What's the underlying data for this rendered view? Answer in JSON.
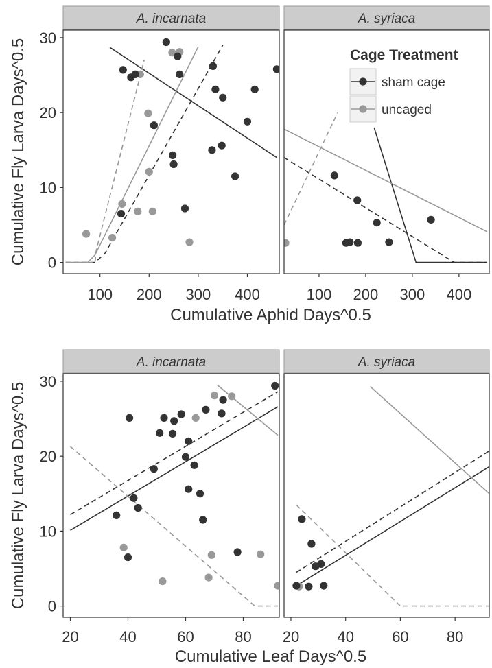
{
  "chart_data": [
    {
      "type": "scatter",
      "panel_group": "top",
      "xlabel": "Cumulative Aphid Days^0.5",
      "ylabel": "Cumulative Fly Larva Days^0.5",
      "xlim": [
        25,
        465
      ],
      "ylim": [
        -1.5,
        31
      ],
      "xticks": [
        100,
        200,
        300,
        400
      ],
      "yticks": [
        0,
        10,
        20,
        30
      ],
      "legend": {
        "title": "Cage Treatment",
        "placement": "top-right",
        "entries": [
          {
            "label": "sham cage",
            "color": "#333333"
          },
          {
            "label": "uncaged",
            "color": "#999999"
          }
        ]
      },
      "panels": [
        {
          "strip": "A. incarnata",
          "sham": [
            [
              143,
              6.5
            ],
            [
              147,
              25.7
            ],
            [
              163,
              24.7
            ],
            [
              172,
              25.1
            ],
            [
              210,
              18.3
            ],
            [
              235,
              29.4
            ],
            [
              248,
              14.3
            ],
            [
              250,
              13.1
            ],
            [
              258,
              27.5
            ],
            [
              262,
              25.1
            ],
            [
              273,
              7.2
            ],
            [
              328,
              15.0
            ],
            [
              330,
              26.2
            ],
            [
              335,
              23.1
            ],
            [
              348,
              15.6
            ],
            [
              350,
              22.0
            ],
            [
              375,
              11.5
            ],
            [
              400,
              18.8
            ],
            [
              415,
              23.1
            ],
            [
              460,
              25.8
            ]
          ],
          "uncaged": [
            [
              72,
              3.8
            ],
            [
              125,
              3.3
            ],
            [
              145,
              7.8
            ],
            [
              177,
              6.8
            ],
            [
              182,
              25.1
            ],
            [
              198,
              19.9
            ],
            [
              200,
              12.1
            ],
            [
              207,
              6.8
            ],
            [
              247,
              28.0
            ],
            [
              262,
              28.1
            ],
            [
              282,
              2.7
            ]
          ],
          "fits": [
            {
              "color": "#333333",
              "dash": false,
              "points": [
                [
                  120,
                  28.7
                ],
                [
                  460,
                  14.0
                ]
              ]
            },
            {
              "color": "#333333",
              "dash": true,
              "points": [
                [
                  30,
                  0
                ],
                [
                  90,
                  0
                ],
                [
                  110,
                  1.2
                ],
                [
                  350,
                  29.0
                ]
              ]
            },
            {
              "color": "#999999",
              "dash": false,
              "points": [
                [
                  30,
                  0
                ],
                [
                  75,
                  0
                ],
                [
                  90,
                  1.0
                ],
                [
                  300,
                  28.8
                ]
              ]
            },
            {
              "color": "#999999",
              "dash": true,
              "points": [
                [
                  75,
                  0
                ],
                [
                  90,
                  0
                ],
                [
                  92,
                  1.5
                ],
                [
                  190,
                  27.0
                ]
              ]
            }
          ]
        },
        {
          "strip": "A. syriaca",
          "sham": [
            [
              133,
              11.6
            ],
            [
              158,
              2.6
            ],
            [
              166,
              2.7
            ],
            [
              182,
              8.3
            ],
            [
              183,
              2.6
            ],
            [
              224,
              5.3
            ],
            [
              250,
              2.7
            ],
            [
              340,
              5.7
            ]
          ],
          "uncaged": [
            [
              28,
              2.6
            ]
          ],
          "fits": [
            {
              "color": "#333333",
              "dash": false,
              "points": [
                [
                  218,
                  18.0
                ],
                [
                  308,
                  0
                ],
                [
                  460,
                  0
                ]
              ]
            },
            {
              "color": "#333333",
              "dash": true,
              "points": [
                [
                  25,
                  14.0
                ],
                [
                  390,
                  0
                ],
                [
                  460,
                  0
                ]
              ]
            },
            {
              "color": "#999999",
              "dash": false,
              "points": [
                [
                  25,
                  17.8
                ],
                [
                  460,
                  4.1
                ]
              ]
            },
            {
              "color": "#999999",
              "dash": true,
              "points": [
                [
                  25,
                  5.0
                ],
                [
                  140,
                  20.0
                ]
              ]
            }
          ]
        }
      ]
    },
    {
      "type": "scatter",
      "panel_group": "bottom",
      "xlabel": "Cumulative Leaf Days^0.5",
      "ylabel": "Cumulative Fly Larva Days^0.5",
      "xlim": [
        17.5,
        92.5
      ],
      "ylim": [
        -1.5,
        31
      ],
      "xticks": [
        20,
        40,
        60,
        80
      ],
      "yticks": [
        0,
        10,
        20,
        30
      ],
      "panels": [
        {
          "strip": "A. incarnata",
          "sham": [
            [
              36,
              12.1
            ],
            [
              40,
              6.5
            ],
            [
              40.5,
              25.1
            ],
            [
              42,
              14.4
            ],
            [
              43.5,
              13.1
            ],
            [
              49,
              18.3
            ],
            [
              51,
              23.1
            ],
            [
              52.5,
              25.1
            ],
            [
              55.5,
              23.0
            ],
            [
              56,
              24.7
            ],
            [
              58.5,
              25.6
            ],
            [
              60,
              19.9
            ],
            [
              61,
              22.0
            ],
            [
              61,
              15.6
            ],
            [
              63,
              18.8
            ],
            [
              65,
              15.0
            ],
            [
              66,
              11.5
            ],
            [
              67,
              26.2
            ],
            [
              72.5,
              25.7
            ],
            [
              73,
              27.5
            ],
            [
              78,
              7.2
            ],
            [
              91,
              29.4
            ]
          ],
          "uncaged": [
            [
              38.5,
              7.8
            ],
            [
              52,
              3.3
            ],
            [
              63.5,
              25.1
            ],
            [
              68,
              3.8
            ],
            [
              69,
              6.8
            ],
            [
              70,
              28.1
            ],
            [
              76,
              28.0
            ],
            [
              86,
              6.9
            ],
            [
              92,
              2.7
            ]
          ],
          "fits": [
            {
              "color": "#333333",
              "dash": false,
              "points": [
                [
                  20,
                  10.1
                ],
                [
                  92,
                  26.6
                ]
              ]
            },
            {
              "color": "#333333",
              "dash": true,
              "points": [
                [
                  20,
                  12.2
                ],
                [
                  92,
                  28.6
                ]
              ]
            },
            {
              "color": "#999999",
              "dash": false,
              "points": [
                [
                  71,
                  29.5
                ],
                [
                  92,
                  22.8
                ]
              ]
            },
            {
              "color": "#999999",
              "dash": true,
              "points": [
                [
                  20,
                  21.3
                ],
                [
                  84,
                  0
                ],
                [
                  92,
                  0
                ]
              ]
            }
          ]
        },
        {
          "strip": "A. syriaca",
          "sham": [
            [
              22,
              2.7
            ],
            [
              24,
              11.6
            ],
            [
              26.5,
              2.6
            ],
            [
              27.5,
              8.3
            ],
            [
              29,
              5.3
            ],
            [
              31,
              5.6
            ],
            [
              32,
              2.7
            ]
          ],
          "uncaged": [
            [
              23,
              2.6
            ]
          ],
          "fits": [
            {
              "color": "#333333",
              "dash": false,
              "points": [
                [
                  22,
                  2.7
                ],
                [
                  92.5,
                  18.6
                ]
              ]
            },
            {
              "color": "#333333",
              "dash": true,
              "points": [
                [
                  22,
                  4.5
                ],
                [
                  92.5,
                  20.7
                ]
              ]
            },
            {
              "color": "#999999",
              "dash": false,
              "points": [
                [
                  49,
                  29.3
                ],
                [
                  92.5,
                  15.0
                ]
              ]
            },
            {
              "color": "#999999",
              "dash": true,
              "points": [
                [
                  22,
                  13.5
                ],
                [
                  60,
                  0
                ],
                [
                  92.5,
                  0
                ]
              ]
            }
          ]
        }
      ]
    }
  ]
}
